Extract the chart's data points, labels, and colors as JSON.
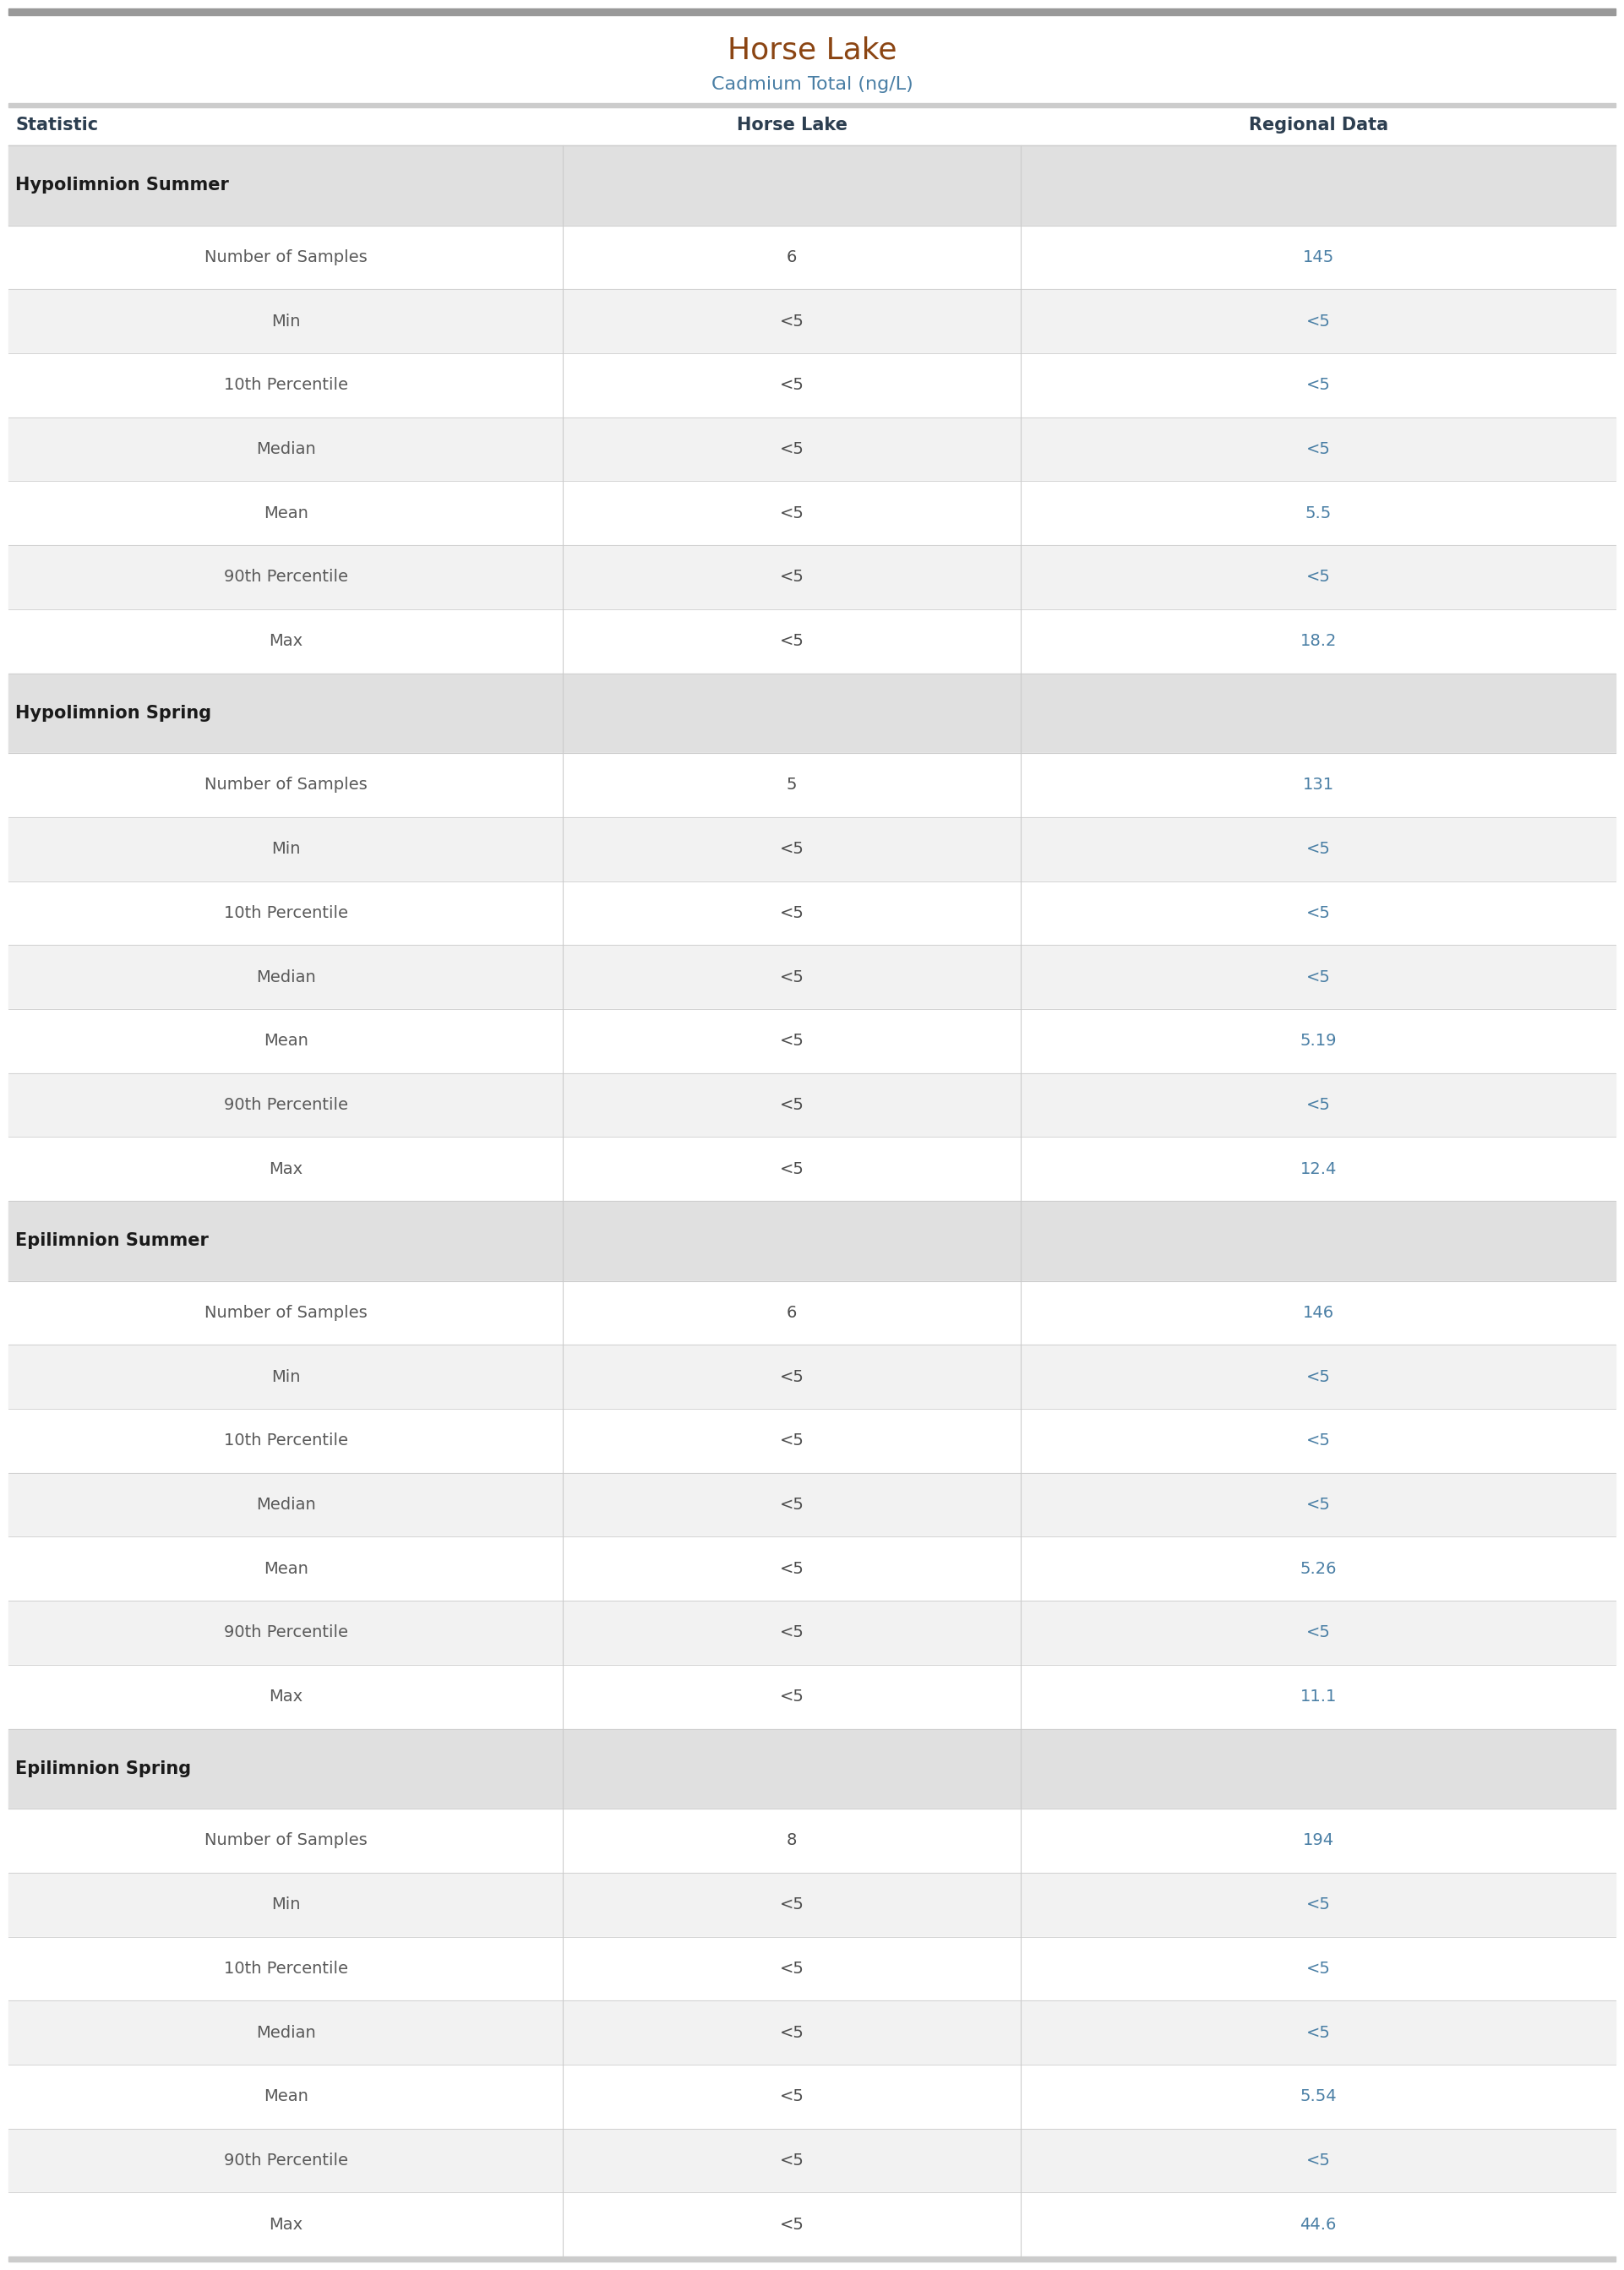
{
  "title": "Horse Lake",
  "subtitle": "Cadmium Total (ng/L)",
  "title_color": "#8B4513",
  "subtitle_color": "#4a7fa5",
  "col_headers": [
    "Statistic",
    "Horse Lake",
    "Regional Data"
  ],
  "col_header_color": "#2c3e50",
  "sections": [
    {
      "section_label": "Hypolimnion Summer",
      "rows": [
        {
          "stat": "Number of Samples",
          "lake": "6",
          "regional": "145"
        },
        {
          "stat": "Min",
          "lake": "<5",
          "regional": "<5"
        },
        {
          "stat": "10th Percentile",
          "lake": "<5",
          "regional": "<5"
        },
        {
          "stat": "Median",
          "lake": "<5",
          "regional": "<5"
        },
        {
          "stat": "Mean",
          "lake": "<5",
          "regional": "5.5"
        },
        {
          "stat": "90th Percentile",
          "lake": "<5",
          "regional": "<5"
        },
        {
          "stat": "Max",
          "lake": "<5",
          "regional": "18.2"
        }
      ]
    },
    {
      "section_label": "Hypolimnion Spring",
      "rows": [
        {
          "stat": "Number of Samples",
          "lake": "5",
          "regional": "131"
        },
        {
          "stat": "Min",
          "lake": "<5",
          "regional": "<5"
        },
        {
          "stat": "10th Percentile",
          "lake": "<5",
          "regional": "<5"
        },
        {
          "stat": "Median",
          "lake": "<5",
          "regional": "<5"
        },
        {
          "stat": "Mean",
          "lake": "<5",
          "regional": "5.19"
        },
        {
          "stat": "90th Percentile",
          "lake": "<5",
          "regional": "<5"
        },
        {
          "stat": "Max",
          "lake": "<5",
          "regional": "12.4"
        }
      ]
    },
    {
      "section_label": "Epilimnion Summer",
      "rows": [
        {
          "stat": "Number of Samples",
          "lake": "6",
          "regional": "146"
        },
        {
          "stat": "Min",
          "lake": "<5",
          "regional": "<5"
        },
        {
          "stat": "10th Percentile",
          "lake": "<5",
          "regional": "<5"
        },
        {
          "stat": "Median",
          "lake": "<5",
          "regional": "<5"
        },
        {
          "stat": "Mean",
          "lake": "<5",
          "regional": "5.26"
        },
        {
          "stat": "90th Percentile",
          "lake": "<5",
          "regional": "<5"
        },
        {
          "stat": "Max",
          "lake": "<5",
          "regional": "11.1"
        }
      ]
    },
    {
      "section_label": "Epilimnion Spring",
      "rows": [
        {
          "stat": "Number of Samples",
          "lake": "8",
          "regional": "194"
        },
        {
          "stat": "Min",
          "lake": "<5",
          "regional": "<5"
        },
        {
          "stat": "10th Percentile",
          "lake": "<5",
          "regional": "<5"
        },
        {
          "stat": "Median",
          "lake": "<5",
          "regional": "<5"
        },
        {
          "stat": "Mean",
          "lake": "<5",
          "regional": "5.54"
        },
        {
          "stat": "90th Percentile",
          "lake": "<5",
          "regional": "<5"
        },
        {
          "stat": "Max",
          "lake": "<5",
          "regional": "44.6"
        }
      ]
    }
  ],
  "bg_color": "#ffffff",
  "section_bg_color": "#e0e0e0",
  "row_alt_color": "#f2f2f2",
  "row_white_color": "#ffffff",
  "divider_color": "#cccccc",
  "top_bar_color": "#999999",
  "bottom_bar_color": "#cccccc",
  "header_bar_color": "#cccccc",
  "text_color_stat": "#5a5a5a",
  "text_color_data": "#4d4d4d",
  "text_color_section": "#1a1a1a",
  "text_color_regional": "#4a7fa5",
  "font_size_title": 26,
  "font_size_subtitle": 16,
  "font_size_header": 15,
  "font_size_section": 15,
  "font_size_row": 14
}
